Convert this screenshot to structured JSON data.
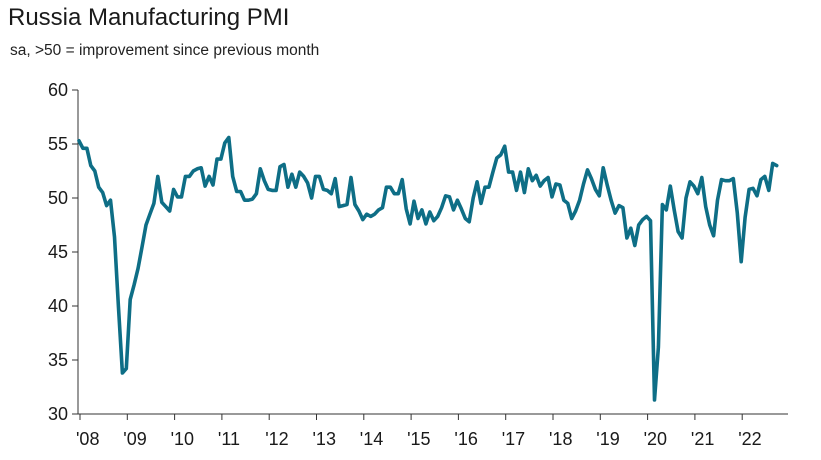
{
  "chart_data": {
    "type": "line",
    "title": "Russia Manufacturing PMI",
    "subtitle": "sa, >50 = improvement since previous month",
    "xlabel": "",
    "ylabel": "",
    "ylim": [
      30,
      60
    ],
    "yticks": [
      30,
      35,
      40,
      45,
      50,
      55,
      60
    ],
    "xtick_labels": [
      "'08",
      "'09",
      "'10",
      "'11",
      "'12",
      "'13",
      "'14",
      "'15",
      "'16",
      "'17",
      "'18",
      "'19",
      "'20",
      "'21",
      "'22"
    ],
    "line_color": "#0e6e86",
    "grid": false,
    "series": [
      {
        "name": "Russia Manufacturing PMI",
        "start": "2008-01",
        "frequency": "monthly",
        "values": [
          55.3,
          54.6,
          54.6,
          53.0,
          52.5,
          51.0,
          50.5,
          49.3,
          49.8,
          46.4,
          40.0,
          33.8,
          34.2,
          40.6,
          42.0,
          43.5,
          45.5,
          47.5,
          48.5,
          49.5,
          52.0,
          49.6,
          49.2,
          48.8,
          50.8,
          50.1,
          50.1,
          52.0,
          52.0,
          52.5,
          52.7,
          52.8,
          51.1,
          52.0,
          51.2,
          53.6,
          53.6,
          55.1,
          55.6,
          52.0,
          50.6,
          50.6,
          49.8,
          49.8,
          49.9,
          50.4,
          52.7,
          51.6,
          50.8,
          50.7,
          50.7,
          52.9,
          53.1,
          51.0,
          52.2,
          51.0,
          52.4,
          52.0,
          51.4,
          50.0,
          52.0,
          52.0,
          50.8,
          50.7,
          50.4,
          51.8,
          49.2,
          49.3,
          49.4,
          51.9,
          49.4,
          48.8,
          48.0,
          48.5,
          48.3,
          48.5,
          48.9,
          49.1,
          51.0,
          51.0,
          50.4,
          50.4,
          51.7,
          49.0,
          47.6,
          49.7,
          48.1,
          48.9,
          47.6,
          48.7,
          47.9,
          48.3,
          49.1,
          50.2,
          50.1,
          48.9,
          49.8,
          49.0,
          48.1,
          47.8,
          50.0,
          51.5,
          49.5,
          51.0,
          51.0,
          52.4,
          53.7,
          54.0,
          54.8,
          52.4,
          52.4,
          50.7,
          52.4,
          50.5,
          52.7,
          51.6,
          52.1,
          51.1,
          51.6,
          51.9,
          50.1,
          51.3,
          51.2,
          49.8,
          49.5,
          48.1,
          48.8,
          49.8,
          51.3,
          52.6,
          51.8,
          50.8,
          50.2,
          52.8,
          51.2,
          49.8,
          48.6,
          49.3,
          49.1,
          46.3,
          47.2,
          45.6,
          47.5,
          48.0,
          48.3,
          47.9,
          31.3,
          36.2,
          49.4,
          48.9,
          51.1,
          48.9,
          46.9,
          46.3,
          50.0,
          51.5,
          51.1,
          50.4,
          51.9,
          49.2,
          47.5,
          46.5,
          49.8,
          51.7,
          51.6,
          51.6,
          51.8,
          48.6,
          44.1,
          48.2,
          50.8,
          50.9,
          50.2,
          51.7,
          52.0,
          50.7,
          53.2,
          53.0
        ]
      }
    ]
  }
}
